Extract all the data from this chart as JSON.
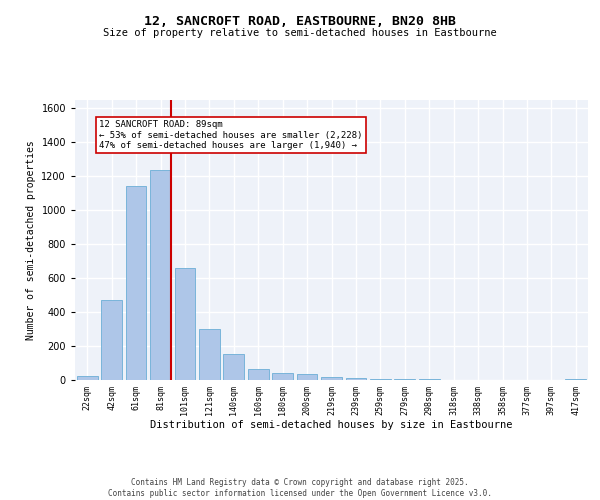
{
  "title1": "12, SANCROFT ROAD, EASTBOURNE, BN20 8HB",
  "title2": "Size of property relative to semi-detached houses in Eastbourne",
  "xlabel": "Distribution of semi-detached houses by size in Eastbourne",
  "ylabel": "Number of semi-detached properties",
  "categories": [
    "22sqm",
    "42sqm",
    "61sqm",
    "81sqm",
    "101sqm",
    "121sqm",
    "140sqm",
    "160sqm",
    "180sqm",
    "200sqm",
    "219sqm",
    "239sqm",
    "259sqm",
    "279sqm",
    "298sqm",
    "318sqm",
    "338sqm",
    "358sqm",
    "377sqm",
    "397sqm",
    "417sqm"
  ],
  "values": [
    25,
    470,
    1145,
    1240,
    660,
    300,
    155,
    65,
    40,
    35,
    20,
    12,
    8,
    4,
    3,
    2,
    2,
    1,
    1,
    1,
    8
  ],
  "bar_color": "#aec6e8",
  "bar_edge_color": "#6baed6",
  "vline_color": "#cc0000",
  "annotation_text": "12 SANCROFT ROAD: 89sqm\n← 53% of semi-detached houses are smaller (2,228)\n47% of semi-detached houses are larger (1,940) →",
  "annotation_box_color": "#ffffff",
  "annotation_box_edge": "#cc0000",
  "ylim": [
    0,
    1650
  ],
  "footer": "Contains HM Land Registry data © Crown copyright and database right 2025.\nContains public sector information licensed under the Open Government Licence v3.0.",
  "background_color": "#eef2f9",
  "grid_color": "#ffffff",
  "title1_fontsize": 9.5,
  "title2_fontsize": 7.5,
  "ylabel_fontsize": 7,
  "xlabel_fontsize": 7.5,
  "tick_fontsize": 6,
  "footer_fontsize": 5.5,
  "annotation_fontsize": 6.5
}
